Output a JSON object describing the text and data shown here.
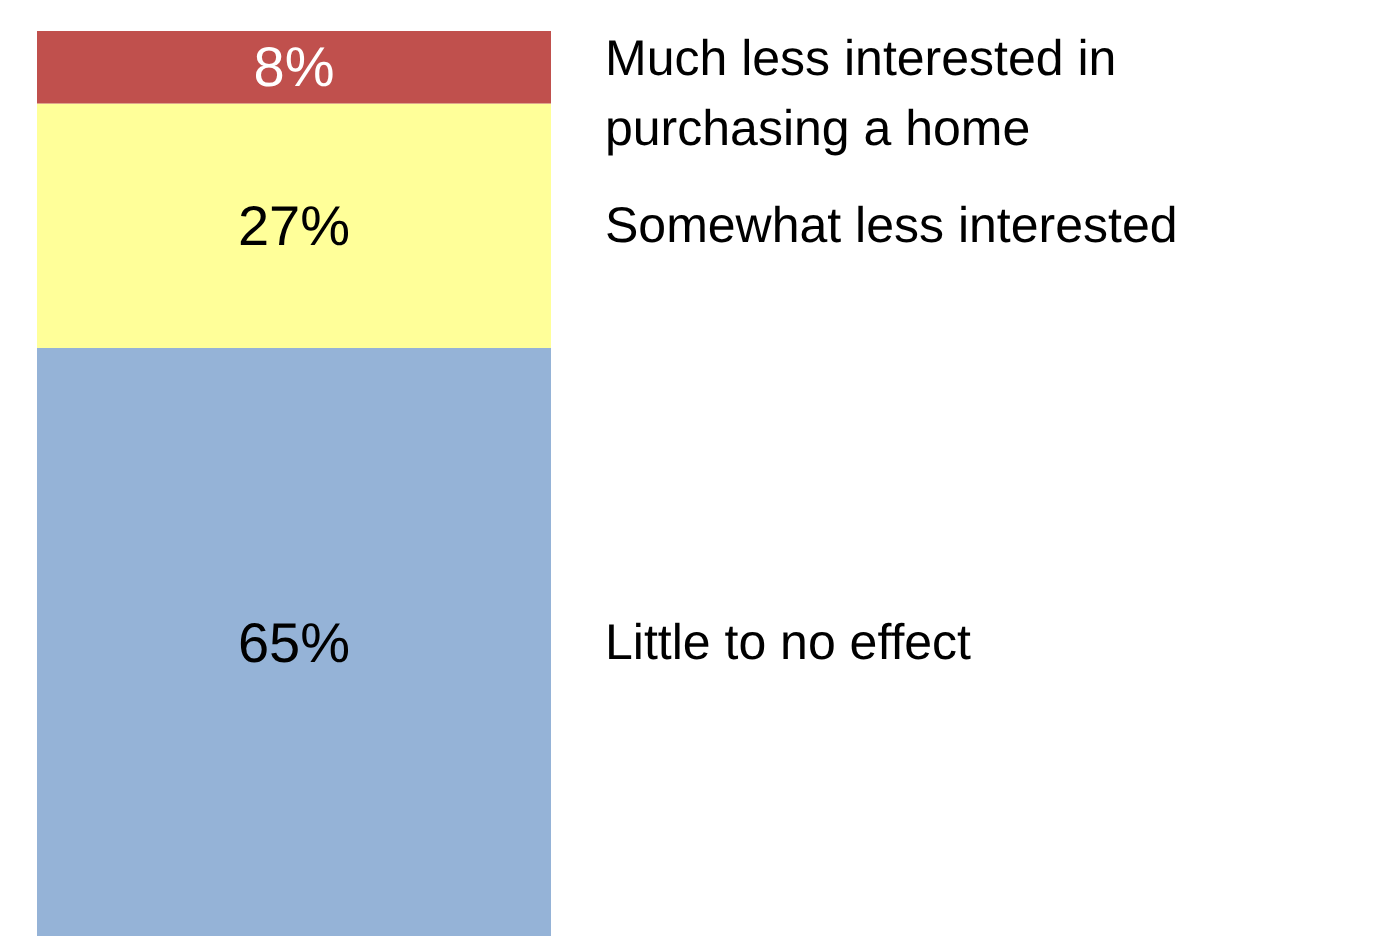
{
  "chart_data": {
    "type": "bar",
    "stacked": true,
    "categories": [
      null
    ],
    "tick_labels": false,
    "grid": false,
    "series": [
      {
        "name": "Little to no effect",
        "color": "#95b3d7",
        "values": [
          65
        ],
        "value_labels": [
          "65%"
        ]
      },
      {
        "name": "Somewhat less interested",
        "color": "#ffff99",
        "values": [
          27
        ],
        "value_labels": [
          "27%"
        ]
      },
      {
        "name": "Much less interested in purchasing a home",
        "color": "#c0504d",
        "values": [
          8
        ],
        "value_labels": [
          "8%"
        ]
      }
    ]
  }
}
